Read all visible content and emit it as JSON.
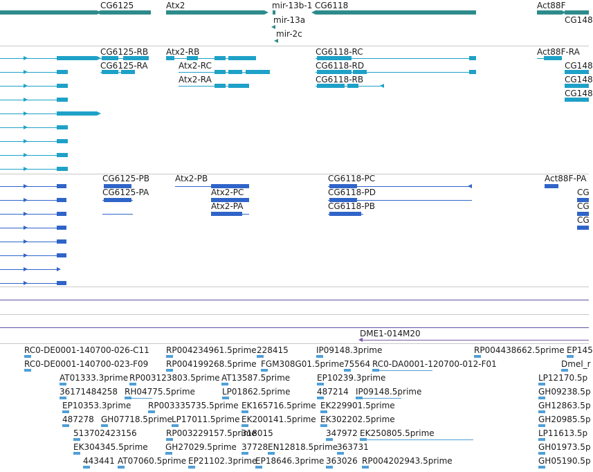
{
  "colors": {
    "gene": "#2e8b8b",
    "transcript": "#1ea1c7",
    "protein": "#2f64c8",
    "clone": "#7a5aa8",
    "cdna": "#4f9fd8",
    "track_line": "#5a4fa0",
    "separator": "#c8c8c8"
  },
  "genes": {
    "labels": [
      "CG6125",
      "Atx2",
      "mir-13b-1",
      "CG6118",
      "mir-13a",
      "mir-2c",
      "Act88F",
      "CG148"
    ]
  },
  "transcripts": {
    "labels": [
      "CG6125-RB",
      "CG6125-RA",
      "Atx2-RB",
      "Atx2-RC",
      "Atx2-RA",
      "CG6118-RC",
      "CG6118-RD",
      "CG6118-RB",
      "Act88F-RA",
      "CG148",
      "CG148",
      "CG148"
    ]
  },
  "proteins": {
    "labels": [
      "CG6125-PB",
      "CG6125-PA",
      "Atx2-PB",
      "Atx2-PC",
      "Atx2-PA",
      "CG6118-PC",
      "CG6118-PD",
      "CG6118-PB",
      "Act88F-PA",
      "CG",
      "CG",
      "CG"
    ]
  },
  "clones": {
    "labels": [
      "DME1-014M20"
    ]
  },
  "cdna": {
    "labels": [
      "RC0-DE0001-140700-026-C11",
      "RP004234961.5prime",
      "228415",
      "IP09148.3prime",
      "RP004438662.5prime",
      "EP145",
      "RC0-DE0001-140700-023-F09",
      "RP004199268.5prime",
      "FGM308G01.5prime",
      "75564",
      "RC0-DA0001-120700-012-F01",
      "Dmel_r",
      "AT01333.3prime",
      "RP003123803.5prime",
      "AT13587.5prime",
      "EP10239.3prime",
      "LP12170.5p",
      "36171484258",
      "RH04775.5prime",
      "LP01862.5prime",
      "487214",
      "IP09148.5prime",
      "GH09238.5p",
      "EP10353.3prime",
      "RP003335735.5prime",
      "EK165716.5prime",
      "EK229901.5prime",
      "GH12863.5p",
      "487278",
      "GH07718.5prime",
      "LP17011.5prime",
      "EK200141.5prime",
      "EK302202.5prime",
      "GH20985.5p",
      "513702423156",
      "RP003229157.5prime",
      "347972",
      "EK250805.5prime",
      "LP11613.5p",
      "EK304345.5prime",
      "318015",
      "GH01973.5p",
      "GH27029.5prime",
      "37728",
      "EN12818.5prime",
      "363731",
      "443441",
      "AT07060.5prime",
      "EP21102.3prime",
      "EP18646.3prime",
      "363026",
      "RP004202943.5prime",
      "GH05190.5p"
    ]
  }
}
